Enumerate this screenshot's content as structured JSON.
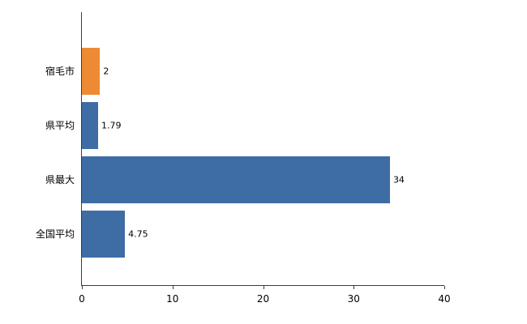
{
  "chart_data": {
    "type": "bar",
    "orientation": "horizontal",
    "title": "",
    "xlabel": "",
    "ylabel": "",
    "categories": [
      "宿毛市",
      "県平均",
      "県最大",
      "全国平均"
    ],
    "values": [
      2,
      1.79,
      34,
      4.75
    ],
    "value_labels": [
      "2",
      "1.79",
      "34",
      "4.75"
    ],
    "bar_colors": [
      "#ED8A33",
      "#3E6DA5",
      "#3E6DA5",
      "#3E6DA5"
    ],
    "xlim": [
      0,
      40
    ],
    "x_ticks": [
      0,
      10,
      20,
      30,
      40
    ],
    "grid": false,
    "legend": false,
    "axis_color": "#3c3c3c",
    "background_color": "#ffffff"
  }
}
